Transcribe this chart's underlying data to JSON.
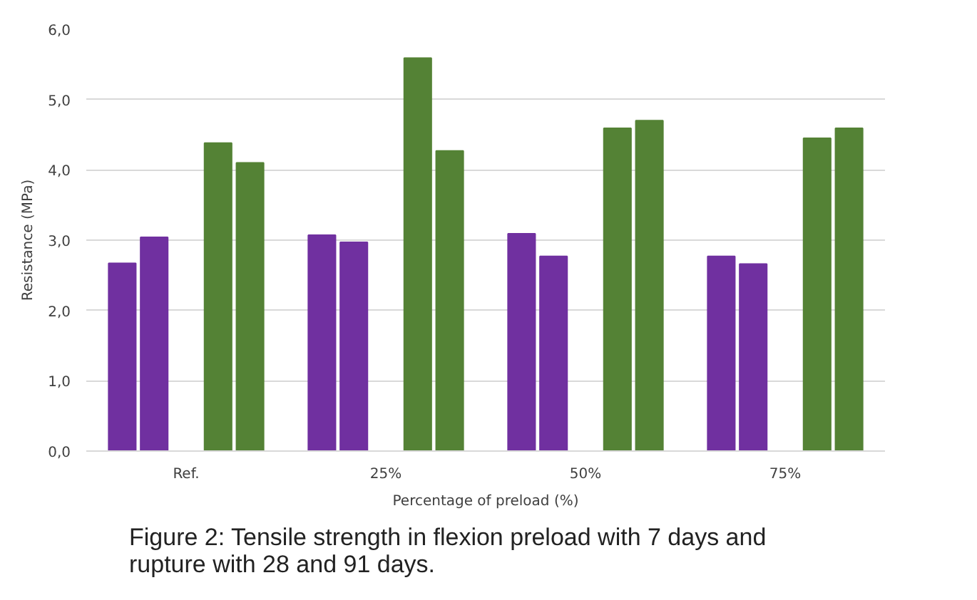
{
  "chart_data": {
    "type": "bar",
    "title": "Figure 2: Tensile strength in flexion preload with 7 days and rupture with 28 and 91 days.",
    "xlabel": "Percentage of preload (%)",
    "ylabel": "Resistance (MPa)",
    "categories": [
      "Ref.",
      "25%",
      "50%",
      "75%"
    ],
    "series": [
      {
        "color": "#7030a0",
        "values": [
          2.67,
          3.07,
          3.09,
          2.77
        ]
      },
      {
        "color": "#7030a0",
        "values": [
          3.04,
          2.97,
          2.77,
          2.66
        ]
      },
      {
        "color": "#548235",
        "values": [
          4.38,
          5.59,
          4.59,
          4.45
        ]
      },
      {
        "color": "#548235",
        "values": [
          4.1,
          4.27,
          4.7,
          4.59
        ]
      }
    ],
    "ylim": [
      0,
      6
    ],
    "yticks": [
      {
        "value": 0,
        "label": "0,0"
      },
      {
        "value": 1,
        "label": "1,0"
      },
      {
        "value": 2,
        "label": "2,0"
      },
      {
        "value": 3,
        "label": "3,0"
      },
      {
        "value": 4,
        "label": "4,0"
      },
      {
        "value": 5,
        "label": "5,0"
      },
      {
        "value": 6,
        "label": "6,0"
      }
    ],
    "grid": "y"
  }
}
